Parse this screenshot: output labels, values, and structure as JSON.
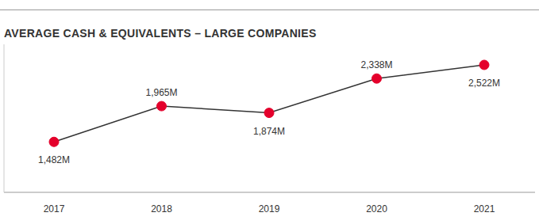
{
  "chart_data": {
    "type": "line",
    "title": "AVERAGE CASH & EQUIVALENTS – LARGE COMPANIES",
    "categories": [
      "2017",
      "2018",
      "2019",
      "2020",
      "2021"
    ],
    "values": [
      1482,
      1965,
      1874,
      2338,
      2522
    ],
    "value_labels": [
      "1,482M",
      "1,965M",
      "1,874M",
      "2,338M",
      "2,522M"
    ],
    "data_labels": true,
    "tick_labels": "x",
    "ylim": [
      800,
      2800
    ],
    "color": "#e4002b",
    "marker": "circle",
    "grid": false
  }
}
